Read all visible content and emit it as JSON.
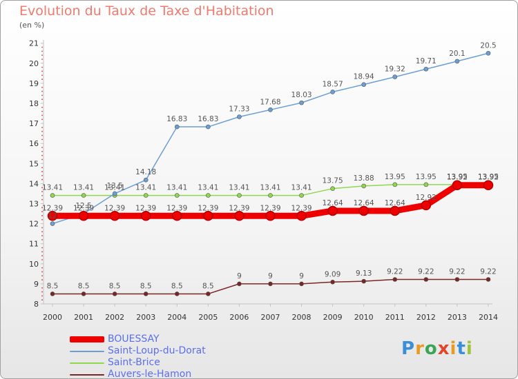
{
  "title": "Evolution du Taux de Taxe d'Habitation",
  "subtitle": "(en %)",
  "logo": {
    "letters": [
      "P",
      "r",
      "o",
      "x",
      "i",
      "t",
      "i"
    ],
    "colors": [
      "#3a8fd8",
      "#e89a24",
      "#3aa655",
      "#e2452c",
      "#e89a24",
      "#3a8fd8",
      "#9dc43c"
    ]
  },
  "chart_data": {
    "type": "line",
    "title": "Evolution du Taux de Taxe d'Habitation",
    "ylabel": "(en %)",
    "x": [
      "2000",
      "2001",
      "2002",
      "2003",
      "2004",
      "2005",
      "2006",
      "2007",
      "2008",
      "2009",
      "2010",
      "2011",
      "2012",
      "2013",
      "2014"
    ],
    "ylim": [
      8,
      21
    ],
    "yticks": [
      "8",
      "9",
      "10",
      "11",
      "12",
      "13",
      "14",
      "15",
      "16",
      "17",
      "18",
      "19",
      "20",
      "21"
    ],
    "grid": false,
    "legend": "bottom-left",
    "series": [
      {
        "name": "BOUESSAY",
        "color": "#ee0000",
        "values": [
          12.39,
          12.39,
          12.39,
          12.39,
          12.39,
          12.39,
          12.39,
          12.39,
          12.39,
          12.64,
          12.64,
          12.64,
          12.92,
          13.92,
          13.92
        ],
        "labels": [
          "12.39",
          "12.39",
          "12.39",
          "12.39",
          "12.39",
          "12.39",
          "12.39",
          "12.39",
          "12.39",
          "12.64",
          "12.64",
          "12.64",
          "12.92",
          "13.92",
          "13.92"
        ]
      },
      {
        "name": "Saint-Loup-du-Dorat",
        "color": "#6b9fd4",
        "values": [
          12,
          12.5,
          13.5,
          14.18,
          16.83,
          16.83,
          17.33,
          17.68,
          18.03,
          18.57,
          18.94,
          19.32,
          19.71,
          20.1,
          20.5
        ],
        "labels": [
          "12",
          "12.5",
          "13.5",
          "14.18",
          "16.83",
          "16.83",
          "17.33",
          "17.68",
          "18.03",
          "18.57",
          "18.94",
          "19.32",
          "19.71",
          "20.1",
          "20.5"
        ]
      },
      {
        "name": "Saint-Brice",
        "color": "#8fd84e",
        "values": [
          13.41,
          13.41,
          13.41,
          13.41,
          13.41,
          13.41,
          13.41,
          13.41,
          13.41,
          13.75,
          13.88,
          13.95,
          13.95,
          13.95,
          13.95
        ],
        "labels": [
          "13.41",
          "13.41",
          "13.41",
          "13.41",
          "13.41",
          "13.41",
          "13.41",
          "13.41",
          "13.41",
          "13.75",
          "13.88",
          "13.95",
          "13.95",
          "13.95",
          "13.95"
        ]
      },
      {
        "name": "Auvers-le-Hamon",
        "color": "#7a2525",
        "values": [
          8.5,
          8.5,
          8.5,
          8.5,
          8.5,
          8.5,
          9,
          9,
          9,
          9.09,
          9.13,
          9.22,
          9.22,
          9.22,
          9.22
        ],
        "labels": [
          "8.5",
          "8.5",
          "8.5",
          "8.5",
          "8.5",
          "8.5",
          "9",
          "9",
          "9",
          "9.09",
          "9.13",
          "9.22",
          "9.22",
          "9.22",
          "9.22"
        ]
      }
    ]
  }
}
